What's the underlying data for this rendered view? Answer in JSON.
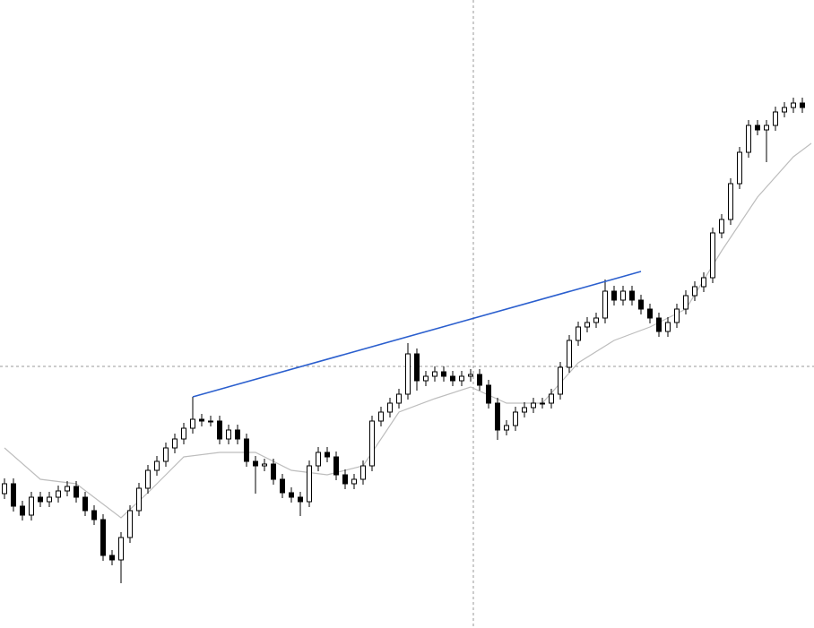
{
  "chart_data": {
    "type": "candlestick",
    "open": [
      150,
      161,
      136,
      126,
      146,
      141,
      146,
      153,
      158,
      146,
      131,
      121,
      81,
      76,
      101,
      131,
      156,
      176,
      186,
      201,
      211,
      223,
      233,
      231,
      231,
      211,
      221,
      211,
      186,
      181,
      183,
      166,
      151,
      146,
      141,
      181,
      196,
      191,
      171,
      161,
      166,
      181,
      231,
      241,
      251,
      261,
      306,
      276,
      281,
      286,
      281,
      276,
      281,
      283,
      271,
      251,
      221,
      226,
      241,
      246,
      251,
      251,
      261,
      291,
      321,
      336,
      341,
      346,
      376,
      366,
      376,
      366,
      356,
      346,
      331,
      341,
      356,
      371,
      381,
      391,
      441,
      456,
      496,
      531,
      561,
      556,
      561,
      576,
      581,
      586
    ],
    "high": [
      167,
      167,
      142,
      152,
      152,
      152,
      159,
      164,
      164,
      152,
      137,
      127,
      87,
      107,
      137,
      162,
      182,
      192,
      207,
      217,
      229,
      258,
      239,
      237,
      237,
      227,
      227,
      217,
      192,
      189,
      189,
      172,
      157,
      152,
      187,
      202,
      202,
      197,
      177,
      172,
      187,
      237,
      247,
      257,
      267,
      318,
      312,
      287,
      292,
      292,
      287,
      287,
      289,
      289,
      277,
      257,
      232,
      247,
      252,
      257,
      257,
      267,
      297,
      327,
      342,
      347,
      352,
      389,
      382,
      382,
      382,
      372,
      362,
      352,
      347,
      362,
      377,
      387,
      397,
      447,
      462,
      502,
      537,
      567,
      567,
      567,
      582,
      587,
      592,
      592
    ],
    "low": [
      144,
      130,
      120,
      120,
      135,
      135,
      140,
      147,
      140,
      125,
      115,
      75,
      70,
      50,
      95,
      125,
      150,
      170,
      180,
      195,
      205,
      217,
      225,
      225,
      205,
      205,
      205,
      180,
      150,
      175,
      160,
      145,
      140,
      125,
      135,
      175,
      185,
      165,
      155,
      155,
      160,
      175,
      225,
      235,
      245,
      255,
      265,
      270,
      275,
      275,
      270,
      270,
      275,
      265,
      245,
      210,
      215,
      220,
      235,
      240,
      245,
      245,
      255,
      285,
      315,
      330,
      335,
      340,
      360,
      360,
      360,
      350,
      340,
      325,
      325,
      335,
      350,
      365,
      375,
      385,
      435,
      450,
      490,
      525,
      550,
      520,
      555,
      570,
      575,
      575
    ],
    "close": [
      161,
      136,
      126,
      146,
      141,
      146,
      153,
      158,
      146,
      131,
      121,
      81,
      76,
      101,
      131,
      156,
      176,
      186,
      201,
      211,
      223,
      233,
      231,
      231,
      211,
      221,
      211,
      186,
      181,
      183,
      166,
      151,
      146,
      141,
      181,
      196,
      191,
      171,
      161,
      166,
      181,
      231,
      241,
      251,
      261,
      306,
      276,
      281,
      286,
      281,
      276,
      281,
      283,
      271,
      251,
      221,
      226,
      241,
      246,
      251,
      251,
      261,
      291,
      321,
      336,
      341,
      346,
      376,
      366,
      376,
      366,
      356,
      346,
      331,
      341,
      356,
      371,
      381,
      391,
      441,
      456,
      496,
      531,
      561,
      556,
      561,
      576,
      581,
      586,
      581
    ],
    "bull_color": "#ffffff",
    "bear_color": "#000000",
    "outline_color": "#000000",
    "moving_average": {
      "color": "#bdbdbd",
      "x": [
        0,
        4,
        8,
        13,
        16,
        20,
        24,
        28,
        32,
        36,
        40,
        44,
        48,
        52,
        56,
        60,
        64,
        68,
        72,
        76,
        80,
        84,
        88,
        90
      ],
      "values": [
        201,
        166,
        161,
        123,
        151,
        191,
        196,
        196,
        176,
        171,
        181,
        241,
        256,
        269,
        251,
        251,
        296,
        321,
        336,
        356,
        421,
        481,
        526,
        541
      ]
    },
    "trendline": {
      "color": "#2b5fce",
      "x": [
        21,
        71
      ],
      "values": [
        258,
        398
      ]
    },
    "crosshair": {
      "x": 52.3,
      "y": 292
    },
    "xlim": [
      -0.5,
      90.3
    ],
    "ylim": [
      0,
      701
    ]
  }
}
